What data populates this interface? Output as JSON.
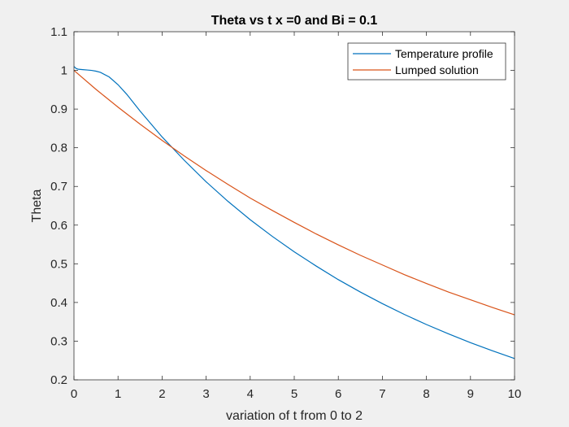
{
  "chart_data": {
    "type": "line",
    "title": "Theta vs t x =0 and Bi = 0.1",
    "xlabel": "variation of t from 0 to 2",
    "ylabel": "Theta",
    "xlim": [
      0,
      10
    ],
    "ylim": [
      0.2,
      1.1
    ],
    "xticks": [
      0,
      1,
      2,
      3,
      4,
      5,
      6,
      7,
      8,
      9,
      10
    ],
    "yticks": [
      0.2,
      0.3,
      0.4,
      0.5,
      0.6,
      0.7,
      0.8,
      0.9,
      1,
      1.1
    ],
    "xtick_labels": [
      "0",
      "1",
      "2",
      "3",
      "4",
      "5",
      "6",
      "7",
      "8",
      "9",
      "10"
    ],
    "ytick_labels": [
      "0.2",
      "0.3",
      "0.4",
      "0.5",
      "0.6",
      "0.7",
      "0.8",
      "0.9",
      "1",
      "1.1"
    ],
    "grid": false,
    "legend_position": "top-right",
    "series": [
      {
        "name": "Temperature profile",
        "color": "#0072BD",
        "x": [
          0,
          0.05,
          0.1,
          0.2,
          0.3,
          0.4,
          0.5,
          0.6,
          0.8,
          1.0,
          1.2,
          1.5,
          2.0,
          2.5,
          3.0,
          3.5,
          4.0,
          4.5,
          5.0,
          5.5,
          6.0,
          6.5,
          7.0,
          7.5,
          8.0,
          8.5,
          9.0,
          9.5,
          10.0
        ],
        "y": [
          1.01,
          1.005,
          1.003,
          1.002,
          1.001,
          1.0,
          0.998,
          0.995,
          0.983,
          0.963,
          0.938,
          0.895,
          0.828,
          0.768,
          0.712,
          0.661,
          0.614,
          0.571,
          0.531,
          0.494,
          0.459,
          0.427,
          0.397,
          0.369,
          0.343,
          0.319,
          0.296,
          0.275,
          0.255
        ]
      },
      {
        "name": "Lumped solution",
        "color": "#D95319",
        "x": [
          0,
          0.5,
          1.0,
          1.5,
          2.0,
          2.5,
          3.0,
          3.5,
          4.0,
          4.5,
          5.0,
          5.5,
          6.0,
          6.5,
          7.0,
          7.5,
          8.0,
          8.5,
          9.0,
          9.5,
          10.0
        ],
        "y": [
          1.0,
          0.951,
          0.905,
          0.861,
          0.819,
          0.779,
          0.741,
          0.705,
          0.67,
          0.638,
          0.607,
          0.577,
          0.549,
          0.522,
          0.497,
          0.472,
          0.449,
          0.427,
          0.407,
          0.387,
          0.368
        ]
      }
    ]
  }
}
